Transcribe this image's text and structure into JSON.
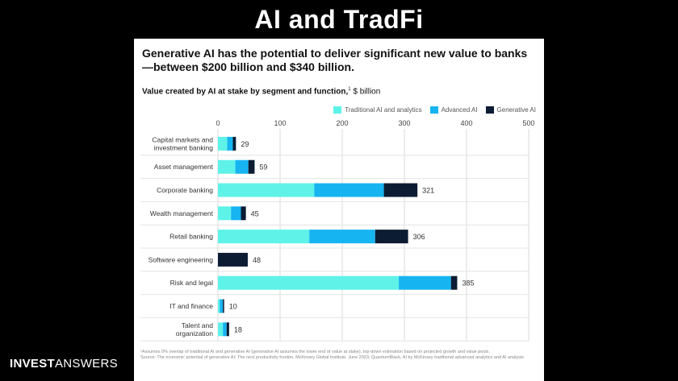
{
  "slide": {
    "title": "AI and TradFi",
    "brand_bold": "INVEST",
    "brand_regular": "ANSWERS"
  },
  "panel": {
    "headline": "Generative AI has the potential to deliver significant new value to banks—between $200 billion and $340 billion.",
    "subtitle_bold": "Value created by AI at stake by segment and function,",
    "subtitle_sup": "1",
    "subtitle_rest": " $ billion",
    "footnote_1": "¹Assumes 0% overlap of traditional AI and generative AI (generative AI assumes the lower end of value at stake), top-down estimation based on projected growth and value pools.",
    "footnote_source": "Source: The economic potential of generative AI: The next productivity frontier, McKinsey Global Institute, June 2023; QuantumBlack, AI by McKinsey traditional advanced analytics and AI analysis"
  },
  "chart_data": {
    "type": "bar",
    "orientation": "horizontal",
    "stacked": true,
    "categories": [
      "Capital markets and investment banking",
      "Asset management",
      "Corporate banking",
      "Wealth management",
      "Retail banking",
      "Software engineering",
      "Risk and legal",
      "IT and finance",
      "Talent and organization"
    ],
    "category_lines": [
      [
        "Capital markets and",
        "investment banking"
      ],
      [
        "Asset management"
      ],
      [
        "Corporate banking"
      ],
      [
        "Wealth management"
      ],
      [
        "Retail banking"
      ],
      [
        "Software engineering"
      ],
      [
        "Risk and legal"
      ],
      [
        "IT and finance"
      ],
      [
        "Talent and",
        "organization"
      ]
    ],
    "series": [
      {
        "name": "Traditional AI and analytics",
        "color": "#5ef2e8",
        "values": [
          15,
          28,
          155,
          21,
          147,
          0,
          291,
          3,
          8
        ]
      },
      {
        "name": "Advanced AI",
        "color": "#16b4f0",
        "values": [
          9,
          21,
          112,
          16,
          106,
          0,
          84,
          5,
          6
        ]
      },
      {
        "name": "Generative  AI",
        "color": "#0b1c33",
        "values": [
          5,
          10,
          54,
          8,
          53,
          48,
          10,
          2,
          4
        ]
      }
    ],
    "totals": [
      29,
      59,
      321,
      45,
      306,
      48,
      385,
      10,
      18
    ],
    "xlim": [
      0,
      500
    ],
    "xticks": [
      0,
      100,
      200,
      300,
      400,
      500
    ],
    "grid": true,
    "legend": "top-right"
  }
}
